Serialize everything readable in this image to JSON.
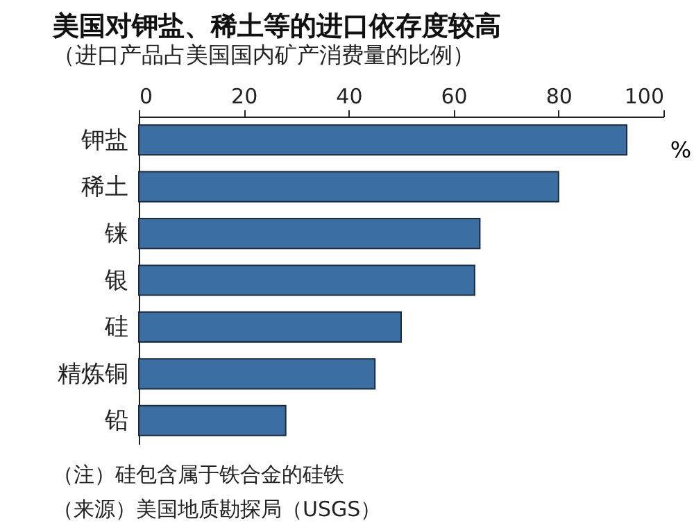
{
  "chart_data": {
    "type": "bar",
    "orientation": "horizontal",
    "title": "美国对钾盐、稀土等的进口依存度较高",
    "subtitle": "（进口产品占美国国内矿产消费量的比例）",
    "xlabel": "%",
    "categories": [
      "钾盐",
      "稀土",
      "铼",
      "银",
      "硅",
      "精炼铜",
      "铅"
    ],
    "values": [
      93,
      80,
      65,
      64,
      50,
      45,
      28
    ],
    "color": "#3b6fa3",
    "xlim": [
      0,
      100
    ],
    "xticks": [
      0,
      20,
      40,
      60,
      80,
      100
    ],
    "grid": false,
    "annotations": [
      "（注）硅包含属于铁合金的硅铁",
      "（来源）美国地质勘探局（USGS）"
    ]
  }
}
